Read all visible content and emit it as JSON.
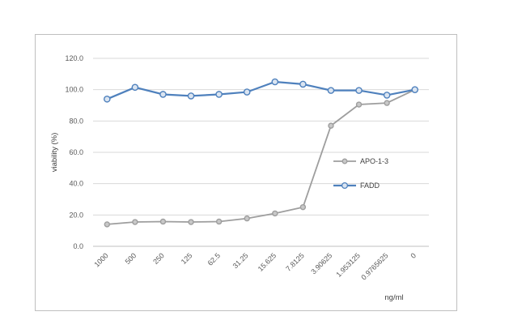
{
  "chart_data": {
    "type": "line",
    "categories": [
      "1000",
      "500",
      "250",
      "125",
      "62.5",
      "31.25",
      "15.625",
      "7.8125",
      "3.90625",
      "1.953125",
      "0.9765625",
      "0"
    ],
    "series": [
      {
        "name": "APO-1-3",
        "color": "#9e9e9e",
        "values": [
          14.0,
          15.5,
          15.8,
          15.5,
          15.8,
          17.8,
          21.0,
          25.0,
          77.0,
          90.5,
          91.5,
          100.0
        ]
      },
      {
        "name": "FADD",
        "color": "#4f81bd",
        "values": [
          94.0,
          101.5,
          97.0,
          96.0,
          97.0,
          98.5,
          105.0,
          103.5,
          99.5,
          99.5,
          96.5,
          100.0
        ]
      }
    ],
    "title": "",
    "xlabel": "ng/ml",
    "ylabel": "viability (%)",
    "ylim": [
      0,
      120
    ],
    "yticks": [
      "0.0",
      "20.0",
      "40.0",
      "60.0",
      "80.0",
      "100.0",
      "120.0"
    ],
    "grid": true,
    "legend_position": "right"
  }
}
